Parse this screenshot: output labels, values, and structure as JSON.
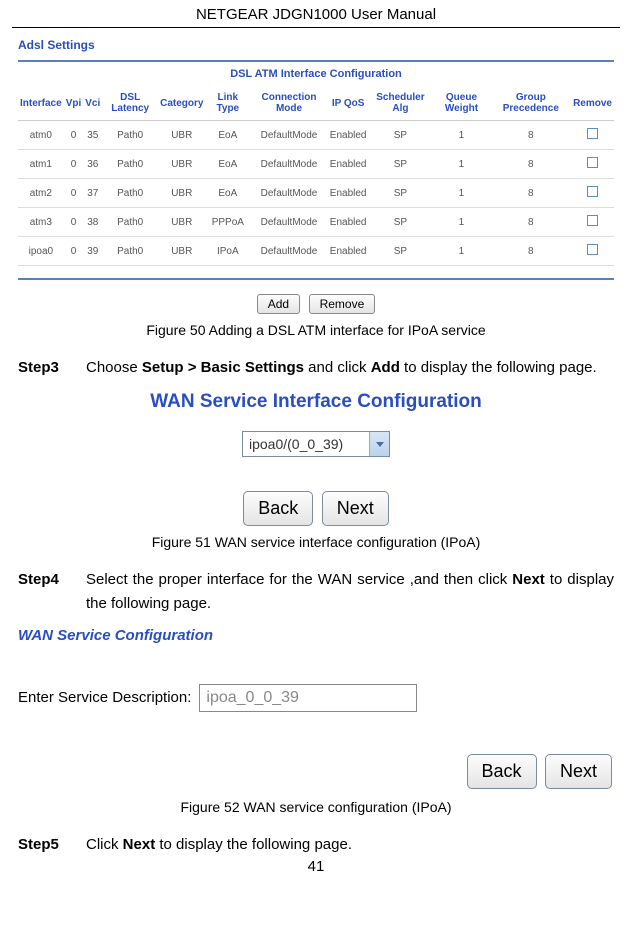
{
  "header": {
    "title": "NETGEAR JDGN1000 User Manual"
  },
  "adsl": {
    "title": "Adsl Settings",
    "table_title": "DSL ATM Interface Configuration",
    "columns": [
      "Interface",
      "Vpi",
      "Vci",
      "DSL Latency",
      "Category",
      "Link Type",
      "Connection Mode",
      "IP QoS",
      "Scheduler Alg",
      "Queue Weight",
      "Group Precedence",
      "Remove"
    ],
    "rows": [
      [
        "atm0",
        "0",
        "35",
        "Path0",
        "UBR",
        "EoA",
        "DefaultMode",
        "Enabled",
        "SP",
        "1",
        "8"
      ],
      [
        "atm1",
        "0",
        "36",
        "Path0",
        "UBR",
        "EoA",
        "DefaultMode",
        "Enabled",
        "SP",
        "1",
        "8"
      ],
      [
        "atm2",
        "0",
        "37",
        "Path0",
        "UBR",
        "EoA",
        "DefaultMode",
        "Enabled",
        "SP",
        "1",
        "8"
      ],
      [
        "atm3",
        "0",
        "38",
        "Path0",
        "UBR",
        "PPPoA",
        "DefaultMode",
        "Enabled",
        "SP",
        "1",
        "8"
      ],
      [
        "ipoa0",
        "0",
        "39",
        "Path0",
        "UBR",
        "IPoA",
        "DefaultMode",
        "Enabled",
        "SP",
        "1",
        "8"
      ]
    ],
    "add_label": "Add",
    "remove_label": "Remove"
  },
  "fig50": "Figure 50 Adding a DSL ATM interface for IPoA service",
  "step3": {
    "label": "Step3",
    "pre": "Choose ",
    "b1": "Setup > Basic Settings",
    "mid": " and click ",
    "b2": "Add",
    "post": " to display the following page."
  },
  "wan_if": {
    "title": "WAN Service Interface Configuration",
    "selected": "ipoa0/(0_0_39)",
    "back": "Back",
    "next": "Next"
  },
  "fig51": "Figure 51 WAN service interface configuration (IPoA)",
  "step4": {
    "label": "Step4",
    "pre": "Select the proper interface for the WAN service ,and then click ",
    "b1": "Next",
    "post": " to display the following page."
  },
  "wan_svc": {
    "title": "WAN Service Configuration",
    "desc_label": "Enter Service Description:",
    "desc_value": "ipoa_0_0_39",
    "back": "Back",
    "next": "Next"
  },
  "fig52": "Figure 52 WAN service configuration (IPoA)",
  "step5": {
    "label": "Step5",
    "pre": "Click ",
    "b1": "Next",
    "post": " to display the following page."
  },
  "page_number": "41"
}
